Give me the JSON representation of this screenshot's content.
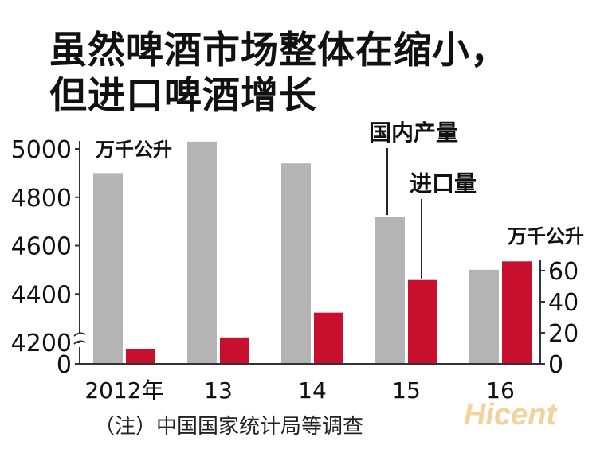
{
  "title": [
    "虽然啤酒市场整体在缩小，",
    "但进口啤酒增长"
  ],
  "note": "（注）中国国家统计局等调查",
  "watermark": "Hicent",
  "colors": {
    "domestic": "#b4b4b4",
    "imports": "#c8102e",
    "axis": "#333333"
  },
  "chart_data": {
    "type": "bar",
    "categories": [
      "2012年",
      "13",
      "14",
      "15",
      "16"
    ],
    "series": [
      {
        "name": "国内产量",
        "axis": "left",
        "values": [
          4900,
          5030,
          4940,
          4720,
          4500
        ]
      },
      {
        "name": "进口量",
        "axis": "right",
        "values": [
          9.5,
          17,
          33,
          54,
          66
        ]
      }
    ],
    "left_axis": {
      "unit": "万千公升",
      "ticks": [
        0,
        4200,
        4400,
        4600,
        4800,
        5000
      ],
      "ylim": [
        4050,
        5050
      ],
      "broken": true
    },
    "right_axis": {
      "unit": "万千公升",
      "ticks": [
        0,
        20,
        40,
        60
      ],
      "ylim": [
        0,
        70
      ]
    },
    "legend": "callout labels at top-right",
    "grid": false
  }
}
